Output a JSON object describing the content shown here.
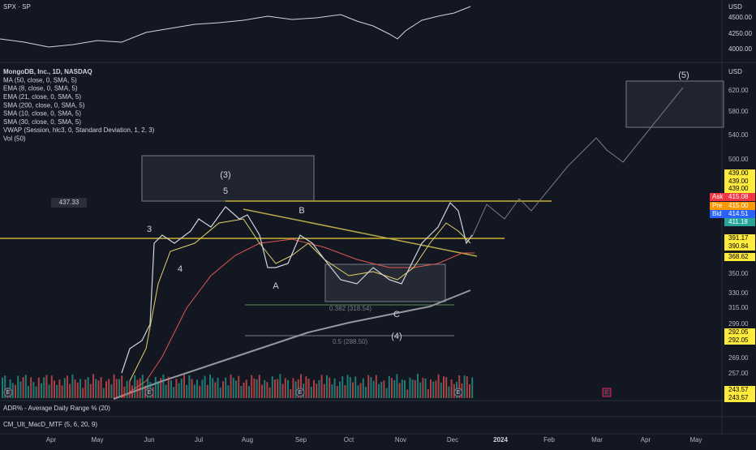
{
  "top_pane": {
    "symbol": "SPX · SP",
    "currency": "USD",
    "axis_labels": [
      "4500.00",
      "4250.00",
      "4000.00"
    ]
  },
  "main_pane": {
    "legend": [
      "MongoDB, Inc., 1D, NASDAQ",
      "MA (50, close, 0, SMA, 5)",
      "EMA (8, close, 0, SMA, 5)",
      "EMA (21, close, 0, SMA, 5)",
      "SMA (200, close, 0, SMA, 5)",
      "SMA (10, close, 0, SMA, 5)",
      "SMA (30, close, 0, SMA, 5)",
      "VWAP (Session, hlc3, 0, Standard Deviation, 1, 2, 3)",
      "Vol (50)"
    ],
    "currency": "USD",
    "axis_labels": [
      "620.00",
      "580.00",
      "540.00",
      "500.00",
      "439.00",
      "439.00",
      "439.00",
      "411.18",
      "391.17",
      "390.84",
      "368.62",
      "350.00",
      "330.00",
      "315.00",
      "299.00",
      "292.05",
      "292.05",
      "269.00",
      "257.00",
      "243.57",
      "243.57"
    ],
    "quotes": [
      {
        "tag": "Ask",
        "price": "415.08"
      },
      {
        "tag": "Pre",
        "price": "415.00"
      },
      {
        "tag": "Bid",
        "price": "414.51"
      }
    ],
    "level_label": "437.33",
    "waves": [
      "(5)",
      "(3)",
      "5",
      "B",
      "3",
      "4",
      "A",
      "C",
      "(4)"
    ],
    "fib_labels": [
      "0.382 (318.54)",
      "0.5 (288.50)"
    ],
    "earnings_marker": "E"
  },
  "indicators": [
    "ADR% - Average Daily Range % (20)",
    "CM_Ult_MacD_MTF (5, 6, 20, 9)"
  ],
  "time_axis": [
    "Apr",
    "May",
    "Jun",
    "Jul",
    "Aug",
    "Sep",
    "Oct",
    "Nov",
    "Dec",
    "2024",
    "Feb",
    "Mar",
    "Apr",
    "May"
  ]
}
